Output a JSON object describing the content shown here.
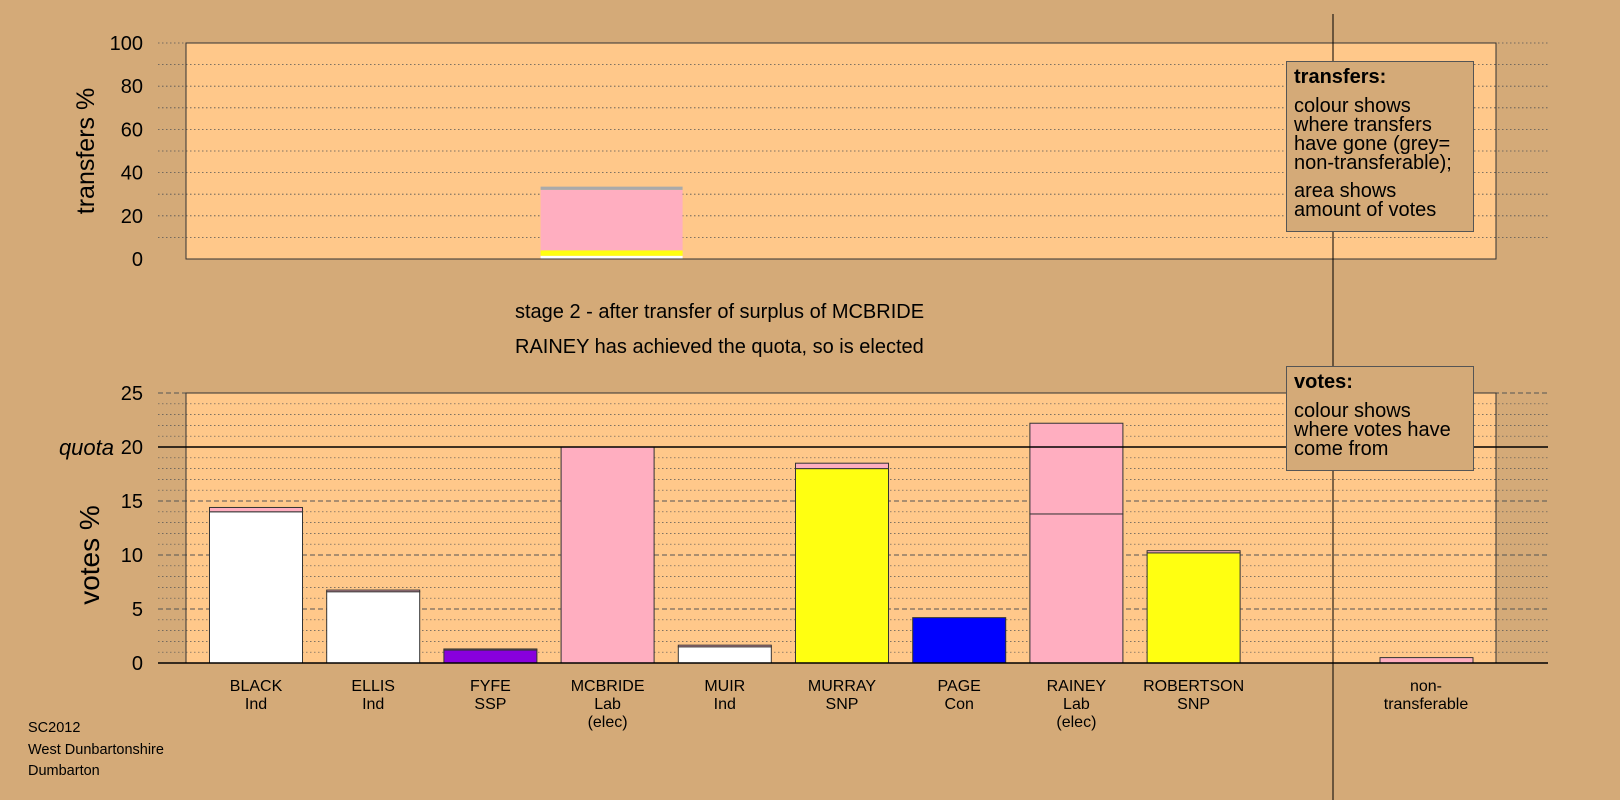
{
  "chart_data": {
    "type": "bar",
    "stage_text": "stage 2 - after transfer of surplus of MCBRIDE",
    "status_text": "RAINEY has achieved the quota, so is elected",
    "colors": {
      "background": "#d4aa78",
      "plot_background": "#ffc88a",
      "Ind": "#ffffff",
      "SSP": "#8800dd",
      "Lab": "#ffaec0",
      "SNP": "#ffff11",
      "Con": "#0000ff",
      "non_transferable": "#aaaaaa"
    },
    "transfers_panel": {
      "ylabel": "transfers %",
      "ylim": [
        0,
        100
      ],
      "yticks": [
        "0",
        "20",
        "40",
        "60",
        "80",
        "100"
      ],
      "bar_candidate": "MCBRIDE",
      "segments": [
        {
          "source": "Ind",
          "value": 1.5
        },
        {
          "source": "SNP",
          "value": 2.5
        },
        {
          "source": "Lab",
          "value": 28
        },
        {
          "source": "non-transferable",
          "value": 1.5
        }
      ],
      "legend": {
        "title": "transfers:",
        "line1": "colour shows where transfers have gone (grey= non-transferable);",
        "line2": "area shows amount of votes"
      }
    },
    "votes_panel": {
      "ylabel": "votes %",
      "quota_label": "quota",
      "quota": 20,
      "ylim": [
        0,
        25
      ],
      "yticks": [
        "0",
        "5",
        "10",
        "15",
        "20",
        "25"
      ],
      "categories": [
        {
          "name": "BLACK",
          "party": "Ind",
          "note": "",
          "segments": [
            {
              "party": "Ind",
              "value": 14.0
            },
            {
              "party": "Lab",
              "value": 0.4
            }
          ]
        },
        {
          "name": "ELLIS",
          "party": "Ind",
          "note": "",
          "segments": [
            {
              "party": "Ind",
              "value": 6.6
            },
            {
              "party": "Lab",
              "value": 0.15
            }
          ]
        },
        {
          "name": "FYFE",
          "party": "SSP",
          "note": "",
          "segments": [
            {
              "party": "SSP",
              "value": 1.2
            },
            {
              "party": "Lab",
              "value": 0.1
            }
          ]
        },
        {
          "name": "MCBRIDE",
          "party": "Lab",
          "note": "(elec)",
          "segments": [
            {
              "party": "Lab",
              "value": 20.0
            }
          ]
        },
        {
          "name": "MUIR",
          "party": "Ind",
          "note": "",
          "segments": [
            {
              "party": "Ind",
              "value": 1.5
            },
            {
              "party": "Lab",
              "value": 0.15
            }
          ]
        },
        {
          "name": "MURRAY",
          "party": "SNP",
          "note": "",
          "segments": [
            {
              "party": "SNP",
              "value": 18.0
            },
            {
              "party": "Lab",
              "value": 0.5
            }
          ]
        },
        {
          "name": "PAGE",
          "party": "Con",
          "note": "",
          "segments": [
            {
              "party": "Con",
              "value": 4.2
            }
          ]
        },
        {
          "name": "RAINEY",
          "party": "Lab",
          "note": "(elec)",
          "segments": [
            {
              "party": "Lab",
              "value": 13.8
            },
            {
              "party": "Lab",
              "value": 8.4
            }
          ]
        },
        {
          "name": "ROBERTSON",
          "party": "SNP",
          "note": "",
          "segments": [
            {
              "party": "SNP",
              "value": 10.2
            },
            {
              "party": "Lab",
              "value": 0.2
            }
          ]
        }
      ],
      "non_transferable": {
        "line1": "non-",
        "line2": "transferable",
        "value": 0.5
      },
      "legend": {
        "title": "votes:",
        "line1": "colour shows where votes have come from"
      }
    }
  },
  "footer": {
    "code": "SC2012",
    "council": "West Dunbartonshire",
    "ward": "Dumbarton"
  }
}
